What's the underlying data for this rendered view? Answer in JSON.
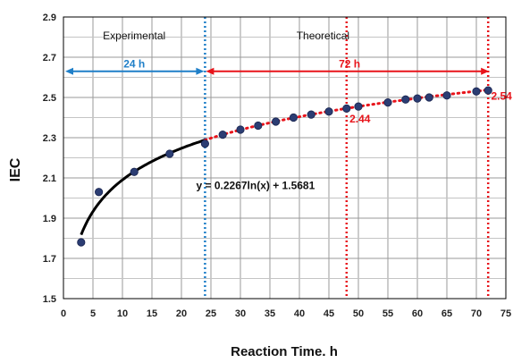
{
  "chart_data": {
    "type": "scatter",
    "xlabel": "Reaction Time. h",
    "ylabel": "IEC",
    "xlim": [
      0,
      75
    ],
    "ylim": [
      1.5,
      2.9
    ],
    "x_ticks": [
      "0",
      "5",
      "10",
      "15",
      "20",
      "25",
      "30",
      "35",
      "40",
      "45",
      "50",
      "55",
      "60",
      "65",
      "70",
      "75"
    ],
    "y_ticks": [
      "1.5",
      "1.7",
      "1.9",
      "2.1",
      "2.3",
      "2.5",
      "2.7",
      "2.9"
    ],
    "grid": true,
    "legend": "none",
    "colors": {
      "experimental_fit": "#000000",
      "theoretical_fit": "#e8141b",
      "markers": "#2b3d73",
      "experimental_annotation": "#1f7fc8",
      "theoretical_annotation": "#e8141b"
    },
    "series": [
      {
        "x": [
          3,
          6,
          12,
          18,
          24
        ],
        "y": [
          1.78,
          2.03,
          2.13,
          2.22,
          2.27
        ]
      },
      {
        "x": [
          27,
          30,
          33,
          36,
          39,
          42,
          45,
          48,
          50,
          55,
          58,
          60,
          62,
          65,
          70,
          72
        ],
        "y": [
          2.315,
          2.34,
          2.36,
          2.38,
          2.4,
          2.415,
          2.43,
          2.445,
          2.455,
          2.475,
          2.49,
          2.495,
          2.5,
          2.51,
          2.53,
          2.535
        ]
      }
    ],
    "fit": {
      "equation": "y = 0.2267ln(x) + 1.5681",
      "a": 0.2267,
      "b": 1.5681,
      "experimental_range": [
        3,
        24
      ],
      "theoretical_range": [
        24,
        72
      ]
    },
    "annotations": {
      "experimental_label": "Experimental",
      "theoretical_label": "Theoretical",
      "experimental_span": "24 h",
      "theoretical_span": "72 h",
      "experimental_span_range": [
        0,
        24
      ],
      "theoretical_span_range": [
        24,
        72
      ],
      "marker_48_label": "2.44",
      "marker_72_label": "2.54",
      "vertical_lines": [
        24,
        48,
        72
      ]
    }
  }
}
